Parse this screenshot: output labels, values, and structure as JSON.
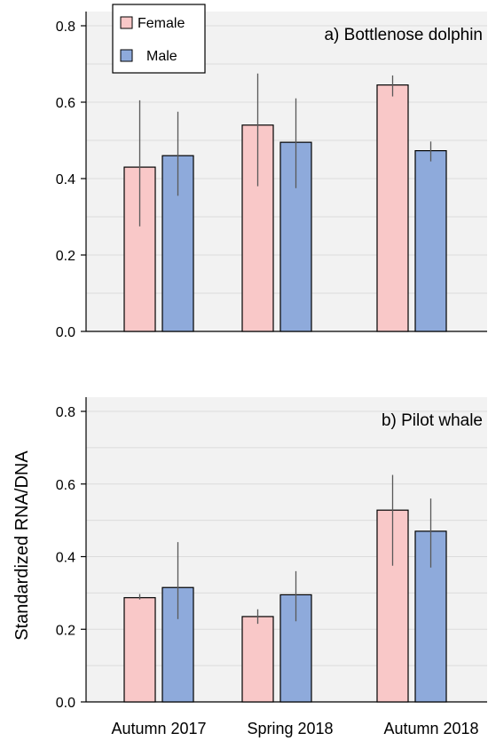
{
  "chart_data": [
    {
      "type": "bar",
      "title": "a) Bottlenose dolphin",
      "categories": [
        "Autumn 2017",
        "Spring 2018",
        "Autumn 2018"
      ],
      "series": [
        {
          "name": "Female",
          "values": [
            0.43,
            0.54,
            0.645
          ],
          "err_low": [
            0.275,
            0.38,
            0.615
          ],
          "err_high": [
            0.605,
            0.675,
            0.67
          ]
        },
        {
          "name": "Male",
          "values": [
            0.46,
            0.495,
            0.473
          ],
          "err_low": [
            0.355,
            0.375,
            0.445
          ],
          "err_high": [
            0.575,
            0.61,
            0.497
          ]
        }
      ],
      "ylim": [
        0,
        0.8
      ],
      "yticks": [
        "0.0",
        "0.2",
        "0.4",
        "0.6",
        "0.8"
      ],
      "grid": true
    },
    {
      "type": "bar",
      "title": "b) Pilot whale",
      "categories": [
        "Autumn 2017",
        "Spring 2018",
        "Autumn 2018"
      ],
      "series": [
        {
          "name": "Female",
          "values": [
            0.287,
            0.235,
            0.528
          ],
          "err_low": [
            0.282,
            0.215,
            0.375
          ],
          "err_high": [
            0.297,
            0.255,
            0.625
          ]
        },
        {
          "name": "Male",
          "values": [
            0.315,
            0.295,
            0.47
          ],
          "err_low": [
            0.228,
            0.222,
            0.37
          ],
          "err_high": [
            0.44,
            0.36,
            0.56
          ]
        }
      ],
      "ylim": [
        0,
        0.8
      ],
      "yticks": [
        "0.0",
        "0.2",
        "0.4",
        "0.6",
        "0.8"
      ],
      "grid": true
    }
  ],
  "ylabel": "Standardized RNA/DNA",
  "legend": {
    "position": "top-left",
    "items": [
      {
        "label": "Female",
        "color": "#f9c8c8"
      },
      {
        "label": "Male",
        "color": "#8eaadb"
      }
    ]
  },
  "colors": {
    "female": "#f9c8c8",
    "male": "#8eaadb",
    "plot_bg": "#f2f2f2",
    "grid": "#dcdcdc",
    "error": "#595959"
  }
}
